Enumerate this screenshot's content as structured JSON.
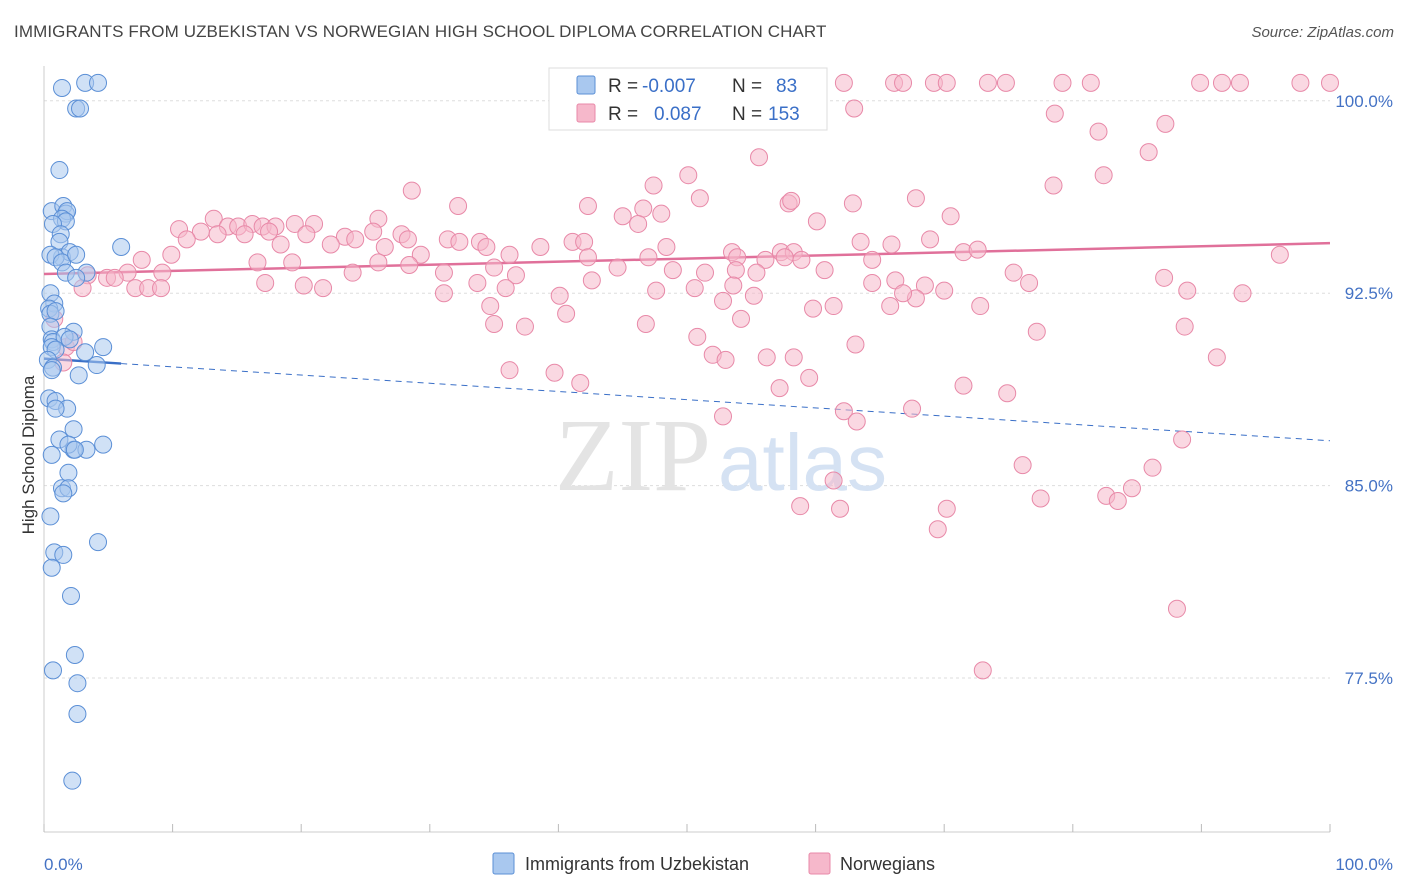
{
  "title": "IMMIGRANTS FROM UZBEKISTAN VS NORWEGIAN HIGH SCHOOL DIPLOMA CORRELATION CHART",
  "source": "Source: ZipAtlas.com",
  "watermark": {
    "zip": "ZIP",
    "atlas": "atlas"
  },
  "colors": {
    "blue_fill": "#a9c8ef",
    "blue_stroke": "#5b8fd6",
    "blue_line": "#3a6fc7",
    "pink_fill": "#f6b8cb",
    "pink_stroke": "#e889a8",
    "pink_line": "#e0709a",
    "axis_label": "#4472c4",
    "grid": "#dddddd"
  },
  "legend": {
    "rows": [
      {
        "r_label": "R =",
        "r_value": "-0.007",
        "n_label": "N =",
        "n_value": "83"
      },
      {
        "r_label": "R =",
        "r_value": "0.087",
        "n_label": "N =",
        "n_value": "153"
      }
    ]
  },
  "chart_data": {
    "type": "scatter",
    "title": "IMMIGRANTS FROM UZBEKISTAN VS NORWEGIAN HIGH SCHOOL DIPLOMA CORRELATION CHART",
    "xlabel": "",
    "ylabel": "High School Diploma",
    "xlim": [
      0,
      100
    ],
    "ylim": [
      71.5,
      101.2
    ],
    "x_tick_labels": [
      "0.0%",
      "100.0%"
    ],
    "y_ticks": [
      {
        "value": 100.0,
        "label": "100.0%"
      },
      {
        "value": 92.5,
        "label": "92.5%"
      },
      {
        "value": 85.0,
        "label": "85.0%"
      },
      {
        "value": 77.5,
        "label": "77.5%"
      }
    ],
    "grid": true,
    "legend_position": "top-center",
    "series": [
      {
        "name": "Immigrants from Uzbekistan",
        "color": "#a9c8ef",
        "trend": {
          "x0": 0,
          "y0": 89.95,
          "x1": 100,
          "y1": 86.75,
          "solid_until_x": 6
        },
        "points": [
          [
            3.2,
            100.7
          ],
          [
            4.2,
            100.7
          ],
          [
            1.4,
            100.5
          ],
          [
            2.5,
            99.7
          ],
          [
            2.8,
            99.7
          ],
          [
            1.2,
            97.3
          ],
          [
            0.6,
            95.7
          ],
          [
            1.5,
            95.9
          ],
          [
            1.7,
            95.6
          ],
          [
            1.8,
            95.7
          ],
          [
            1.4,
            95.4
          ],
          [
            1.7,
            95.3
          ],
          [
            0.7,
            95.2
          ],
          [
            1.3,
            94.8
          ],
          [
            1.2,
            94.5
          ],
          [
            6.0,
            94.3
          ],
          [
            1.4,
            93.9
          ],
          [
            2.0,
            94.1
          ],
          [
            0.5,
            94.0
          ],
          [
            0.9,
            93.9
          ],
          [
            1.4,
            93.7
          ],
          [
            2.5,
            94.0
          ],
          [
            1.7,
            93.3
          ],
          [
            3.3,
            93.3
          ],
          [
            2.5,
            93.1
          ],
          [
            0.5,
            92.5
          ],
          [
            0.8,
            92.1
          ],
          [
            0.4,
            91.9
          ],
          [
            0.5,
            91.7
          ],
          [
            0.9,
            91.8
          ],
          [
            0.5,
            91.2
          ],
          [
            2.3,
            91.0
          ],
          [
            0.6,
            90.7
          ],
          [
            0.7,
            90.6
          ],
          [
            1.6,
            90.8
          ],
          [
            2.0,
            90.7
          ],
          [
            0.6,
            90.4
          ],
          [
            0.9,
            90.3
          ],
          [
            4.6,
            90.4
          ],
          [
            3.2,
            90.2
          ],
          [
            0.3,
            89.9
          ],
          [
            0.7,
            89.6
          ],
          [
            4.1,
            89.7
          ],
          [
            0.6,
            89.5
          ],
          [
            2.7,
            89.3
          ],
          [
            0.4,
            88.4
          ],
          [
            0.9,
            88.3
          ],
          [
            1.8,
            88.0
          ],
          [
            0.9,
            88.0
          ],
          [
            2.3,
            87.2
          ],
          [
            1.2,
            86.8
          ],
          [
            2.3,
            86.4
          ],
          [
            3.3,
            86.4
          ],
          [
            1.9,
            86.6
          ],
          [
            2.4,
            86.4
          ],
          [
            4.6,
            86.6
          ],
          [
            0.6,
            86.2
          ],
          [
            1.9,
            85.5
          ],
          [
            1.4,
            84.9
          ],
          [
            1.9,
            84.9
          ],
          [
            1.5,
            84.7
          ],
          [
            0.5,
            83.8
          ],
          [
            4.2,
            82.8
          ],
          [
            0.8,
            82.4
          ],
          [
            1.5,
            82.3
          ],
          [
            0.6,
            81.8
          ],
          [
            2.1,
            80.7
          ],
          [
            2.4,
            78.4
          ],
          [
            0.7,
            77.8
          ],
          [
            2.6,
            77.3
          ],
          [
            2.6,
            76.1
          ],
          [
            2.2,
            73.5
          ]
        ]
      },
      {
        "name": "Norwegians",
        "color": "#f6b8cb",
        "trend": {
          "x0": 0,
          "y0": 93.25,
          "x1": 100,
          "y1": 94.45
        },
        "points": [
          [
            60.2,
            100.7
          ],
          [
            62.2,
            100.7
          ],
          [
            66.1,
            100.7
          ],
          [
            66.8,
            100.7
          ],
          [
            69.2,
            100.7
          ],
          [
            70.2,
            100.7
          ],
          [
            73.4,
            100.7
          ],
          [
            74.8,
            100.7
          ],
          [
            79.2,
            100.7
          ],
          [
            81.4,
            100.7
          ],
          [
            89.9,
            100.7
          ],
          [
            91.6,
            100.7
          ],
          [
            93.0,
            100.7
          ],
          [
            97.7,
            100.7
          ],
          [
            102.2,
            100.7
          ],
          [
            63.0,
            99.7
          ],
          [
            87.2,
            99.1
          ],
          [
            82.0,
            98.8
          ],
          [
            85.9,
            98.0
          ],
          [
            55.6,
            97.8
          ],
          [
            50.1,
            97.1
          ],
          [
            47.4,
            96.7
          ],
          [
            28.6,
            96.5
          ],
          [
            51.0,
            96.2
          ],
          [
            32.2,
            95.9
          ],
          [
            42.3,
            95.9
          ],
          [
            57.9,
            96.0
          ],
          [
            62.9,
            96.0
          ],
          [
            46.6,
            95.8
          ],
          [
            48.0,
            95.6
          ],
          [
            45.0,
            95.5
          ],
          [
            13.2,
            95.4
          ],
          [
            26.0,
            95.4
          ],
          [
            46.2,
            95.2
          ],
          [
            14.3,
            95.1
          ],
          [
            15.1,
            95.1
          ],
          [
            16.2,
            95.2
          ],
          [
            17.0,
            95.1
          ],
          [
            18.0,
            95.1
          ],
          [
            19.5,
            95.2
          ],
          [
            21.0,
            95.2
          ],
          [
            10.5,
            95.0
          ],
          [
            12.2,
            94.9
          ],
          [
            13.5,
            94.8
          ],
          [
            11.1,
            94.6
          ],
          [
            15.6,
            94.8
          ],
          [
            17.5,
            94.9
          ],
          [
            20.4,
            94.8
          ],
          [
            23.4,
            94.7
          ],
          [
            24.2,
            94.6
          ],
          [
            25.6,
            94.9
          ],
          [
            27.8,
            94.8
          ],
          [
            28.3,
            94.6
          ],
          [
            31.4,
            94.6
          ],
          [
            32.3,
            94.5
          ],
          [
            33.9,
            94.5
          ],
          [
            41.1,
            94.5
          ],
          [
            42.0,
            94.5
          ],
          [
            63.5,
            94.5
          ],
          [
            68.9,
            94.6
          ],
          [
            18.4,
            94.4
          ],
          [
            22.3,
            94.4
          ],
          [
            26.5,
            94.3
          ],
          [
            34.4,
            94.3
          ],
          [
            38.6,
            94.3
          ],
          [
            48.4,
            94.3
          ],
          [
            53.5,
            94.1
          ],
          [
            57.3,
            94.1
          ],
          [
            58.3,
            94.1
          ],
          [
            71.5,
            94.1
          ],
          [
            9.9,
            94.0
          ],
          [
            29.3,
            94.0
          ],
          [
            36.2,
            94.0
          ],
          [
            42.3,
            93.9
          ],
          [
            47.0,
            93.9
          ],
          [
            53.9,
            93.9
          ],
          [
            56.1,
            93.8
          ],
          [
            58.9,
            93.8
          ],
          [
            7.6,
            93.8
          ],
          [
            16.6,
            93.7
          ],
          [
            19.3,
            93.7
          ],
          [
            26.0,
            93.7
          ],
          [
            28.4,
            93.6
          ],
          [
            35.0,
            93.5
          ],
          [
            44.6,
            93.5
          ],
          [
            48.9,
            93.4
          ],
          [
            53.8,
            93.4
          ],
          [
            55.4,
            93.3
          ],
          [
            60.7,
            93.4
          ],
          [
            6.5,
            93.3
          ],
          [
            9.2,
            93.3
          ],
          [
            24.0,
            93.3
          ],
          [
            31.1,
            93.3
          ],
          [
            36.7,
            93.2
          ],
          [
            42.6,
            93.0
          ],
          [
            51.4,
            93.3
          ],
          [
            3.4,
            93.2
          ],
          [
            4.9,
            93.1
          ],
          [
            5.5,
            93.1
          ],
          [
            17.2,
            92.9
          ],
          [
            20.2,
            92.8
          ],
          [
            33.7,
            92.9
          ],
          [
            35.9,
            92.7
          ],
          [
            47.6,
            92.6
          ],
          [
            50.6,
            92.7
          ],
          [
            53.6,
            92.8
          ],
          [
            64.4,
            92.9
          ],
          [
            66.2,
            93.0
          ],
          [
            68.5,
            92.8
          ],
          [
            7.1,
            92.7
          ],
          [
            8.1,
            92.7
          ],
          [
            9.1,
            92.7
          ],
          [
            21.7,
            92.7
          ],
          [
            31.1,
            92.5
          ],
          [
            40.1,
            92.4
          ],
          [
            52.8,
            92.2
          ],
          [
            55.2,
            92.4
          ],
          [
            61.4,
            92.0
          ],
          [
            65.8,
            92.0
          ],
          [
            67.8,
            92.3
          ],
          [
            70.0,
            92.6
          ],
          [
            34.7,
            92.0
          ],
          [
            40.6,
            91.7
          ],
          [
            46.8,
            91.3
          ],
          [
            50.8,
            90.8
          ],
          [
            52.0,
            90.1
          ],
          [
            56.2,
            90.0
          ],
          [
            58.3,
            90.0
          ],
          [
            63.1,
            90.5
          ],
          [
            3.0,
            92.7
          ],
          [
            0.8,
            91.5
          ],
          [
            1.7,
            90.4
          ],
          [
            1.5,
            89.8
          ],
          [
            2.3,
            90.6
          ],
          [
            36.2,
            89.5
          ],
          [
            39.7,
            89.4
          ],
          [
            41.7,
            89.0
          ],
          [
            59.5,
            89.2
          ],
          [
            62.2,
            87.9
          ],
          [
            63.2,
            87.5
          ],
          [
            67.5,
            88.0
          ],
          [
            71.5,
            88.9
          ],
          [
            35.0,
            91.3
          ],
          [
            37.4,
            91.2
          ],
          [
            54.2,
            91.5
          ],
          [
            53.0,
            89.9
          ],
          [
            57.2,
            88.8
          ],
          [
            52.8,
            87.7
          ],
          [
            61.4,
            85.2
          ],
          [
            58.8,
            84.2
          ],
          [
            61.9,
            84.1
          ],
          [
            69.5,
            83.3
          ],
          [
            70.2,
            84.1
          ],
          [
            76.1,
            85.8
          ],
          [
            77.5,
            84.5
          ],
          [
            84.6,
            84.9
          ],
          [
            86.2,
            85.7
          ],
          [
            88.7,
            91.2
          ],
          [
            91.2,
            90.0
          ],
          [
            73.0,
            77.8
          ],
          [
            88.1,
            80.2
          ],
          [
            88.5,
            86.8
          ],
          [
            72.8,
            92.0
          ],
          [
            65.9,
            94.4
          ],
          [
            60.1,
            95.3
          ],
          [
            70.5,
            95.5
          ],
          [
            72.6,
            94.2
          ],
          [
            75.4,
            93.3
          ],
          [
            76.6,
            92.9
          ],
          [
            57.6,
            93.9
          ],
          [
            64.4,
            93.8
          ],
          [
            66.8,
            92.5
          ],
          [
            59.8,
            91.9
          ],
          [
            58.1,
            96.1
          ],
          [
            67.8,
            96.2
          ],
          [
            78.5,
            96.7
          ],
          [
            82.4,
            97.1
          ],
          [
            78.6,
            99.5
          ],
          [
            74.9,
            88.6
          ],
          [
            77.2,
            91.0
          ],
          [
            82.6,
            84.6
          ],
          [
            83.5,
            84.4
          ],
          [
            87.1,
            93.1
          ],
          [
            88.9,
            92.6
          ],
          [
            93.2,
            92.5
          ],
          [
            96.1,
            94.0
          ]
        ]
      }
    ]
  }
}
